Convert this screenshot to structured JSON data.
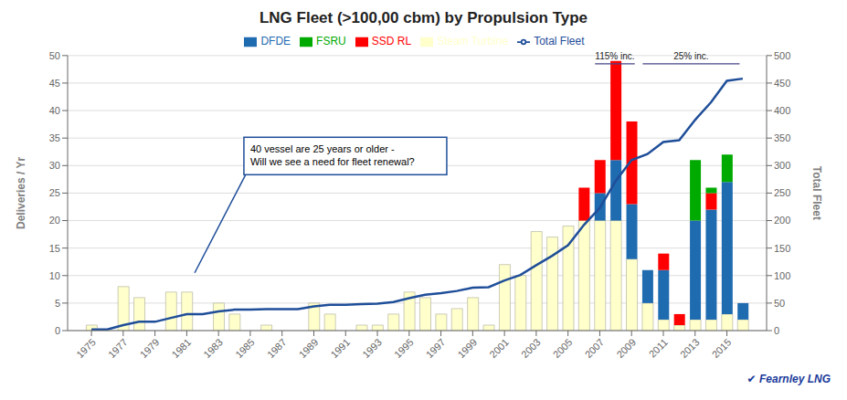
{
  "chart_data": {
    "type": "bar",
    "title": "LNG Fleet (>100,00 cbm) by Propulsion Type",
    "ylabel": "Deliveries / Yr",
    "y2label": "Total Fleet",
    "x": [
      1975,
      1976,
      1977,
      1978,
      1979,
      1980,
      1981,
      1982,
      1983,
      1984,
      1985,
      1986,
      1987,
      1988,
      1989,
      1990,
      1991,
      1992,
      1993,
      1994,
      1995,
      1996,
      1997,
      1998,
      1999,
      2000,
      2001,
      2002,
      2003,
      2004,
      2005,
      2006,
      2007,
      2008,
      2009,
      2010,
      2011,
      2012,
      2013,
      2014,
      2015,
      2016
    ],
    "xlim": [
      1973.5,
      2017.5
    ],
    "xticks": [
      1975,
      1977,
      1979,
      1981,
      1983,
      1985,
      1987,
      1989,
      1991,
      1993,
      1995,
      1997,
      1999,
      2001,
      2003,
      2005,
      2007,
      2009,
      2011,
      2013,
      2015
    ],
    "ylim": [
      0,
      50
    ],
    "yticks": [
      0,
      5,
      10,
      15,
      20,
      25,
      30,
      35,
      40,
      45,
      50
    ],
    "y2lim": [
      0,
      500
    ],
    "y2ticks": [
      0,
      50,
      100,
      150,
      200,
      250,
      300,
      350,
      400,
      450,
      500
    ],
    "stacked": true,
    "grid": true,
    "legend": "top",
    "series": [
      {
        "name": "Steam Turbine",
        "color": "#ffffcc",
        "values": [
          1,
          0,
          8,
          6,
          0,
          7,
          7,
          0,
          5,
          3,
          0,
          1,
          0,
          0,
          5,
          3,
          0,
          1,
          1,
          3,
          7,
          6,
          3,
          4,
          6,
          1,
          12,
          10,
          18,
          17,
          19,
          20,
          20,
          20,
          13,
          5,
          2,
          1,
          2,
          2,
          3,
          2
        ]
      },
      {
        "name": "DFDE",
        "color": "#1f6bb0",
        "values": [
          0,
          0,
          0,
          0,
          0,
          0,
          0,
          0,
          0,
          0,
          0,
          0,
          0,
          0,
          0,
          0,
          0,
          0,
          0,
          0,
          0,
          0,
          0,
          0,
          0,
          0,
          0,
          0,
          0,
          0,
          0,
          0,
          5,
          11,
          10,
          6,
          9,
          0,
          18,
          20,
          24,
          3
        ]
      },
      {
        "name": "SSD RL",
        "color": "#ff0000",
        "values": [
          0,
          0,
          0,
          0,
          0,
          0,
          0,
          0,
          0,
          0,
          0,
          0,
          0,
          0,
          0,
          0,
          0,
          0,
          0,
          0,
          0,
          0,
          0,
          0,
          0,
          0,
          0,
          0,
          0,
          0,
          0,
          6,
          6,
          18,
          15,
          0,
          3,
          2,
          0,
          3,
          0,
          0
        ]
      },
      {
        "name": "FSRU",
        "color": "#00aa00",
        "values": [
          0,
          0,
          0,
          0,
          0,
          0,
          0,
          0,
          0,
          0,
          0,
          0,
          0,
          0,
          0,
          0,
          0,
          0,
          0,
          0,
          0,
          0,
          0,
          0,
          0,
          0,
          0,
          0,
          0,
          0,
          0,
          0,
          0,
          0,
          0,
          0,
          0,
          0,
          11,
          1,
          5,
          0
        ]
      },
      {
        "name": "Total Fleet",
        "type": "line",
        "axis": "y2",
        "color": "#1f4e99",
        "values": [
          2,
          2,
          10,
          16,
          16,
          23,
          30,
          30,
          35,
          38,
          38,
          39,
          39,
          39,
          44,
          47,
          47,
          48,
          49,
          52,
          59,
          65,
          68,
          72,
          78,
          79,
          91,
          101,
          119,
          136,
          155,
          192,
          223,
          272,
          310,
          321,
          343,
          346,
          383,
          415,
          454,
          458
        ]
      }
    ],
    "annotations": [
      "40 vessel are 25 years or older -\nWill we see a need for fleet renewal?",
      "115% inc.",
      "25% inc.",
      "✔ Fearnley LNG"
    ]
  }
}
